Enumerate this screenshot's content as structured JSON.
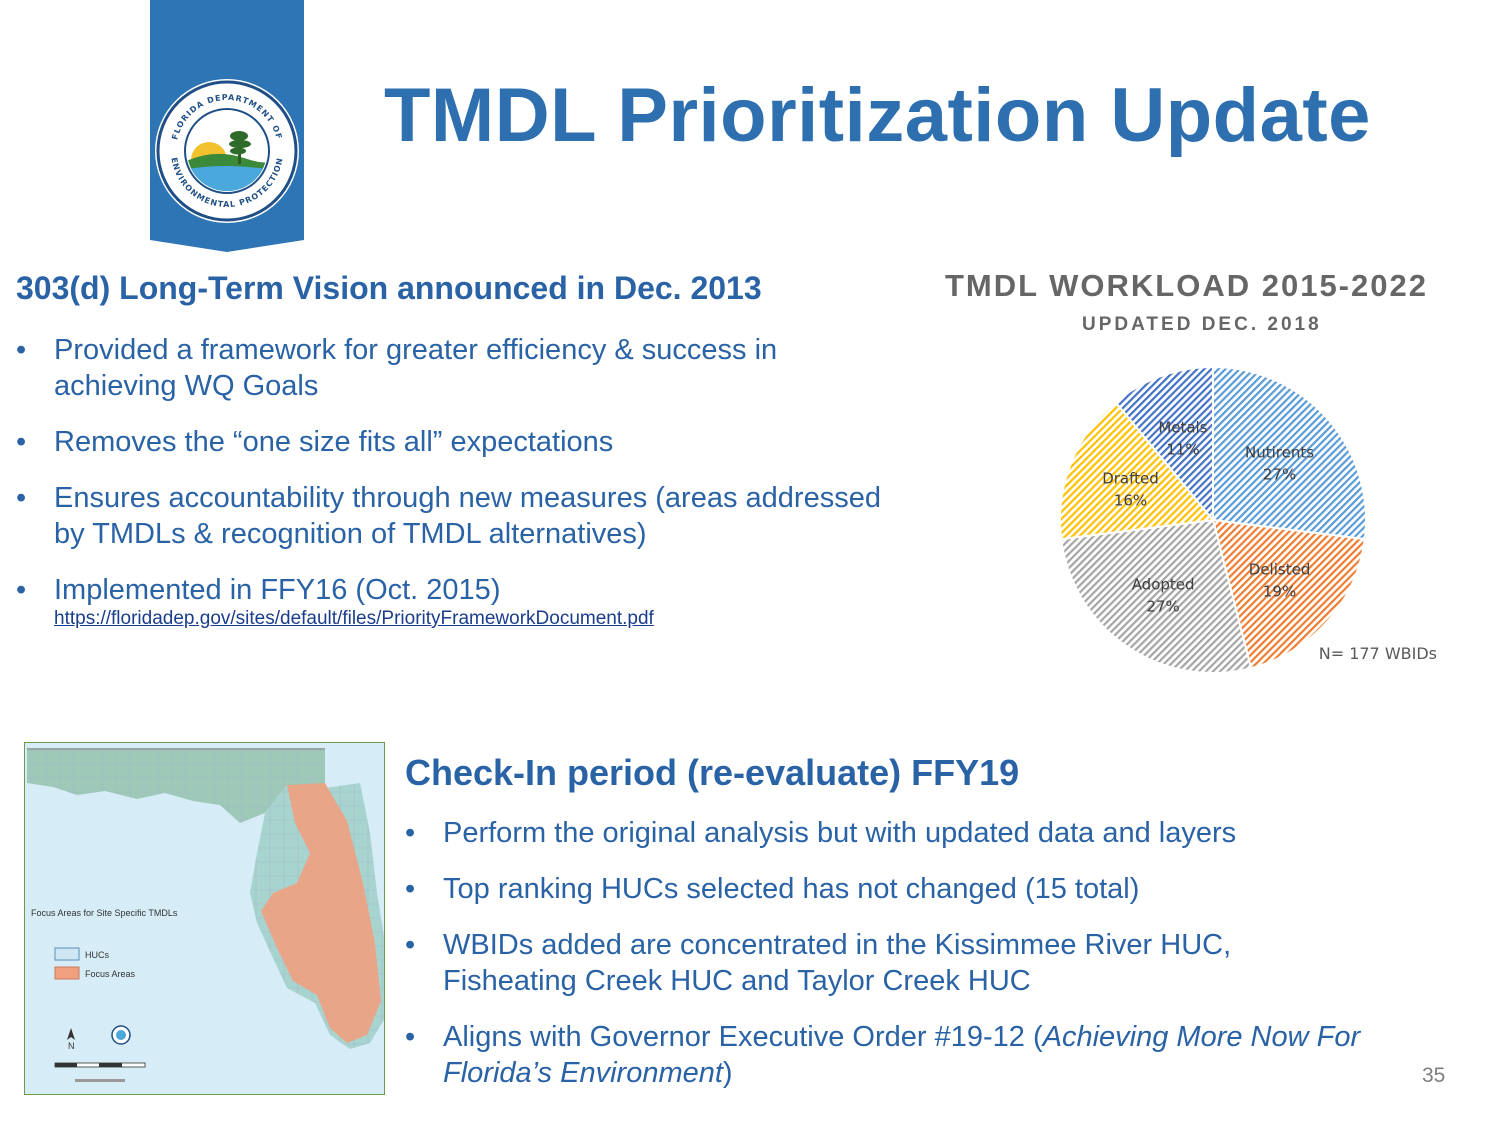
{
  "header": {
    "title": "TMDL Prioritization Update",
    "logo_text": "FLORIDA DEPARTMENT OF ENVIRONMENTAL PROTECTION"
  },
  "section1": {
    "heading": "303(d) Long-Term Vision announced in Dec. 2013",
    "bullets": [
      "Provided a framework for greater efficiency & success in achieving WQ Goals",
      "Removes the “one size fits all” expectations",
      "Ensures accountability through new measures (areas addressed by TMDLs & recognition of TMDL alternatives)",
      "Implemented in FFY16 (Oct. 2015)"
    ],
    "link": "https://floridadep.gov/sites/default/files/PriorityFrameworkDocument.pdf"
  },
  "section2": {
    "heading": "Check-In period (re-evaluate) FFY19",
    "bullets": [
      "Perform the original analysis but with updated data and layers",
      "Top ranking HUCs selected has not changed (15 total)",
      "WBIDs added are concentrated in the Kissimmee River HUC, Fisheating Creek HUC and Taylor Creek HUC"
    ],
    "last_bullet_prefix": "Aligns with Governor Executive Order #19-12 (",
    "last_bullet_italic": "Achieving More Now For Florida’s Environment",
    "last_bullet_suffix": ")"
  },
  "map": {
    "legend_title": "Focus Areas for Site Specific TMDLs",
    "legend_items": [
      "HUCs",
      "Focus Areas"
    ],
    "north_label": "N"
  },
  "page_number": "35",
  "chart_data": {
    "type": "pie",
    "title": "TMDL WORKLOAD 2015-2022",
    "subtitle": "UPDATED DEC. 2018",
    "note": "N= 177 WBIDs",
    "slices": [
      {
        "label": "Nutirents",
        "value": 27,
        "display": "27%",
        "color": "#5b9bd5"
      },
      {
        "label": "Delisted",
        "value": 19,
        "display": "19%",
        "color": "#ed7d31"
      },
      {
        "label": "Adopted",
        "value": 27,
        "display": "27%",
        "color": "#a5a5a5"
      },
      {
        "label": "Drafted",
        "value": 16,
        "display": "16%",
        "color": "#ffc000"
      },
      {
        "label": "Metals",
        "value": 11,
        "display": "11%",
        "color": "#4472c4"
      }
    ]
  }
}
